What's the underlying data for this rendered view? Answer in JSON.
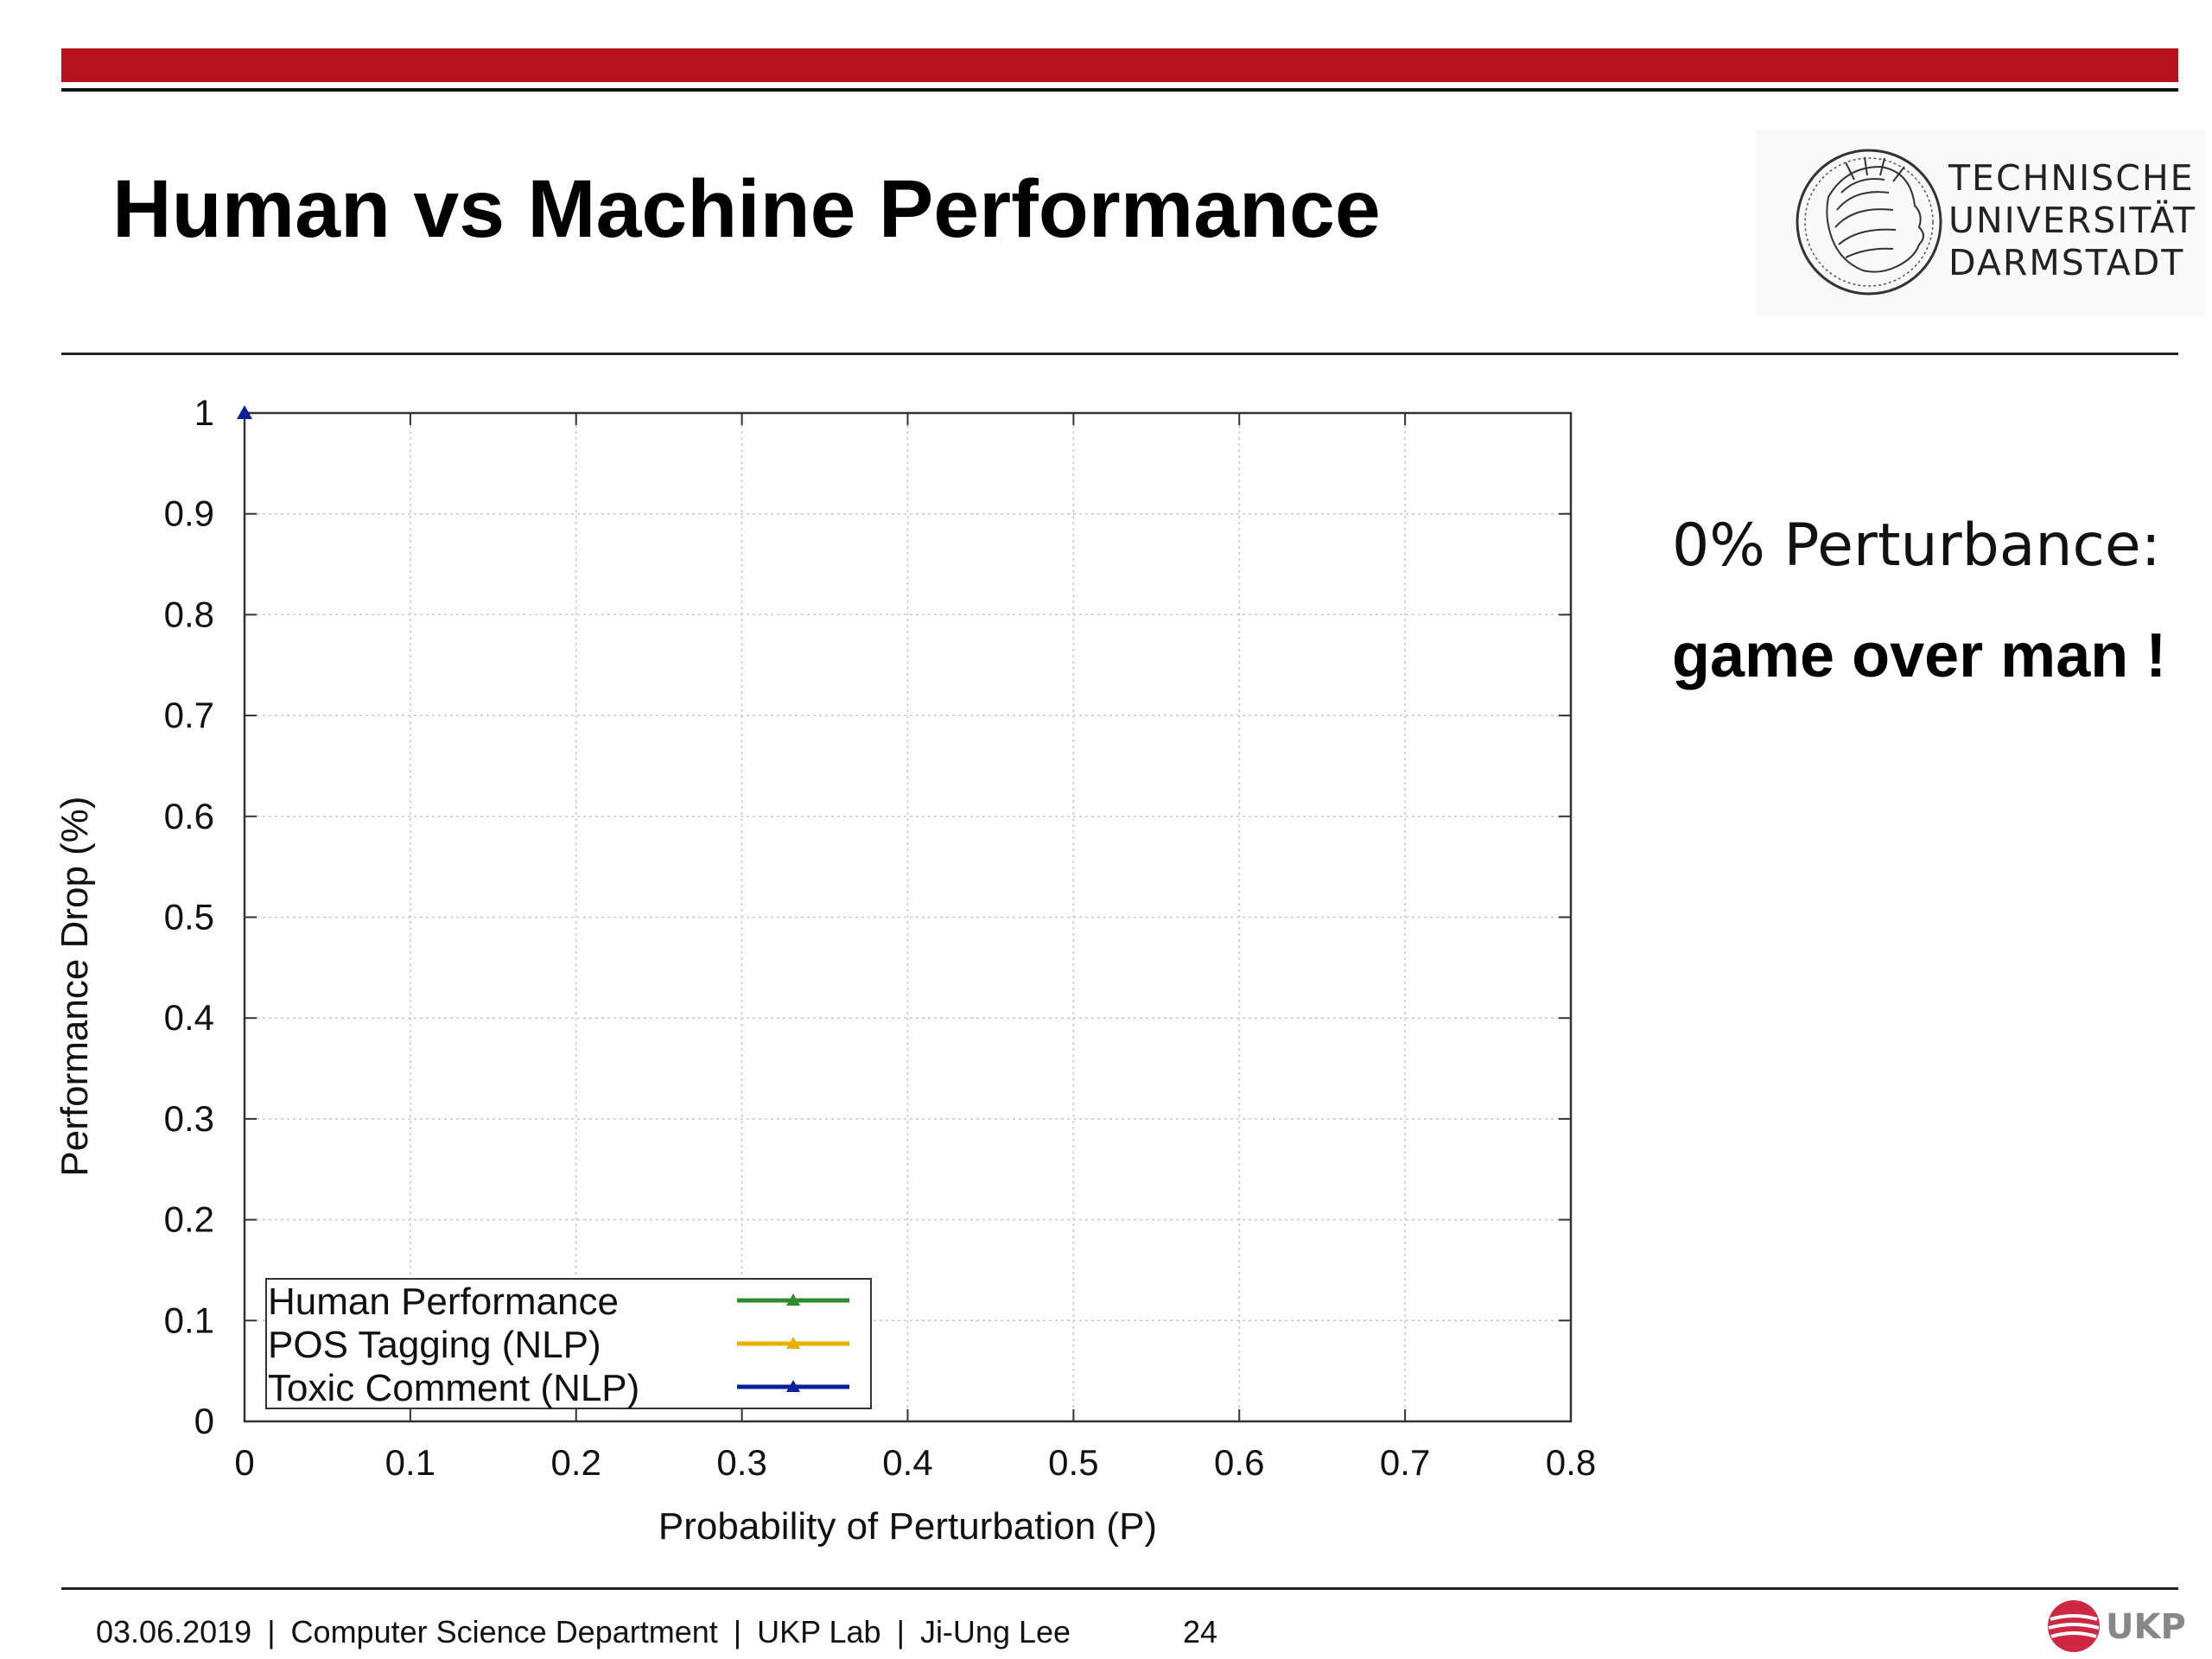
{
  "slide": {
    "title": "Human vs Machine Performance",
    "logo_lines": [
      "TECHNISCHE",
      "UNIVERSITÄT",
      "DARMSTADT"
    ],
    "side_text_line1": "0% Perturbance:",
    "side_text_line2": "game over man !",
    "footer": {
      "date": "03.06.2019",
      "department": "Computer Science Department",
      "lab": "UKP Lab",
      "author": "Ji-Ung Lee",
      "page_number": "24",
      "separator": "|"
    },
    "ukp_logo_text": "UKP",
    "colors": {
      "accent_red": "#b5121b"
    }
  },
  "chart_data": {
    "type": "line",
    "xlabel": "Probability of Perturbation (P)",
    "ylabel": "Performance Drop (%)",
    "xlim": [
      0,
      0.8
    ],
    "ylim": [
      0,
      1
    ],
    "xticks": [
      "0",
      "0.1",
      "0.2",
      "0.3",
      "0.4",
      "0.5",
      "0.6",
      "0.7",
      "0.8"
    ],
    "yticks": [
      "0",
      "0.1",
      "0.2",
      "0.3",
      "0.4",
      "0.5",
      "0.6",
      "0.7",
      "0.8",
      "0.9",
      "1"
    ],
    "grid": true,
    "legend_position": "bottom-left",
    "series": [
      {
        "name": "Human Performance",
        "color": "#2e8b2e",
        "points": []
      },
      {
        "name": "POS Tagging (NLP)",
        "color": "#e8b000",
        "points": []
      },
      {
        "name": "Toxic Comment (NLP)",
        "color": "#0a1f9e",
        "points": [
          {
            "x": 0,
            "y": 1
          }
        ]
      }
    ]
  }
}
